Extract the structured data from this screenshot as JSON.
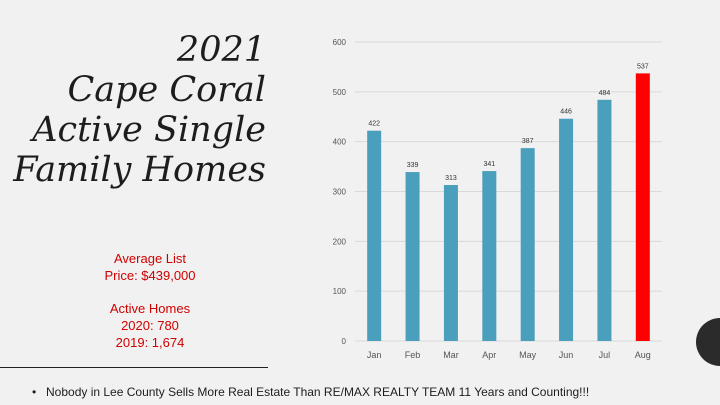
{
  "title_lines": [
    "2021",
    "Cape Coral",
    "Active Single",
    "Family Homes"
  ],
  "stats": {
    "avg_line1": "Average List",
    "avg_line2": "Price: $439,000",
    "active_label": "Active Homes",
    "active_2020": "2020: 780",
    "active_2019": "2019: 1,674"
  },
  "footer": {
    "bullet": "•",
    "text": "Nobody in Lee County Sells More Real Estate Than RE/MAX REALTY  TEAM  11 Years and Counting!!!"
  },
  "colors": {
    "bar": "#4a9fbd",
    "highlight": "#ff0000",
    "grid": "#d9d9d9",
    "label": "#555555",
    "stats_text": "#d10000"
  },
  "chart_data": {
    "type": "bar",
    "categories": [
      "Jan",
      "Feb",
      "Mar",
      "Apr",
      "May",
      "Jun",
      "Jul",
      "Aug"
    ],
    "values": [
      422,
      339,
      313,
      341,
      387,
      446,
      484,
      537
    ],
    "data_labels": [
      "422",
      "339",
      "313",
      "341",
      "387",
      "446",
      "484",
      "537"
    ],
    "highlight_index": 7,
    "ylim": [
      0,
      600
    ],
    "yticks": [
      0,
      100,
      200,
      300,
      400,
      500,
      600
    ],
    "grid": true,
    "title": "",
    "xlabel": "",
    "ylabel": ""
  }
}
